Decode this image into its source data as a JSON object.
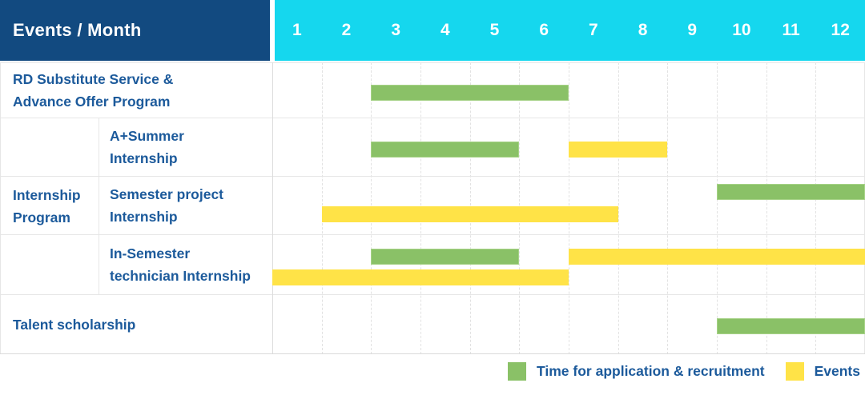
{
  "header": {
    "corner_label": "Events / Month",
    "months": [
      "1",
      "2",
      "3",
      "4",
      "5",
      "6",
      "7",
      "8",
      "9",
      "10",
      "11",
      "12"
    ]
  },
  "colors": {
    "header_bg": "#124a80",
    "months_bg": "#15d7ee",
    "application": "#8ac167",
    "event": "#ffe347",
    "label_text": "#1c5a9b",
    "header_text": "#ffffff",
    "grid": "#e2e2e2"
  },
  "chart_data": {
    "type": "bar",
    "subtype": "gantt",
    "x_axis": {
      "label": "Month",
      "ticks": [
        "1",
        "2",
        "3",
        "4",
        "5",
        "6",
        "7",
        "8",
        "9",
        "10",
        "11",
        "12"
      ],
      "range": [
        1,
        12
      ]
    },
    "grid": true,
    "row_groups": [
      {
        "label_lines": [
          "RD Substitute Service &",
          "Advance Offer Program"
        ],
        "rows": [
          0
        ]
      },
      {
        "label_lines": [
          "Internship",
          "Program"
        ],
        "rows": [
          1,
          2,
          3
        ]
      },
      {
        "label_lines": [
          "Talent scholarship"
        ],
        "rows": [
          4
        ]
      }
    ],
    "rows": [
      {
        "task_lines": null,
        "bars": [
          {
            "kind": "application",
            "start": 3,
            "end": 6,
            "lane": 0
          }
        ]
      },
      {
        "task_lines": [
          "A+Summer",
          "Internship"
        ],
        "bars": [
          {
            "kind": "application",
            "start": 3,
            "end": 5,
            "lane": 0
          },
          {
            "kind": "event",
            "start": 7,
            "end": 8,
            "lane": 0
          }
        ]
      },
      {
        "task_lines": [
          "Semester project",
          "Internship"
        ],
        "bars": [
          {
            "kind": "application",
            "start": 10,
            "end": 12,
            "lane": 0
          },
          {
            "kind": "event",
            "start": 2,
            "end": 7,
            "lane": 1
          }
        ]
      },
      {
        "task_lines": [
          "In-Semester",
          "technician Internship"
        ],
        "bars": [
          {
            "kind": "application",
            "start": 3,
            "end": 5,
            "lane": 0
          },
          {
            "kind": "event",
            "start": 7,
            "end": 12,
            "lane": 0
          },
          {
            "kind": "event",
            "start": 1,
            "end": 6,
            "lane": 1
          }
        ]
      },
      {
        "task_lines": null,
        "bars": [
          {
            "kind": "application",
            "start": 10,
            "end": 12,
            "lane": 0
          }
        ]
      }
    ],
    "legend_position": "bottom-right"
  },
  "legend": {
    "items": [
      {
        "label": "Time for application & recruitment",
        "kind": "application"
      },
      {
        "label": "Events",
        "kind": "event"
      }
    ]
  }
}
